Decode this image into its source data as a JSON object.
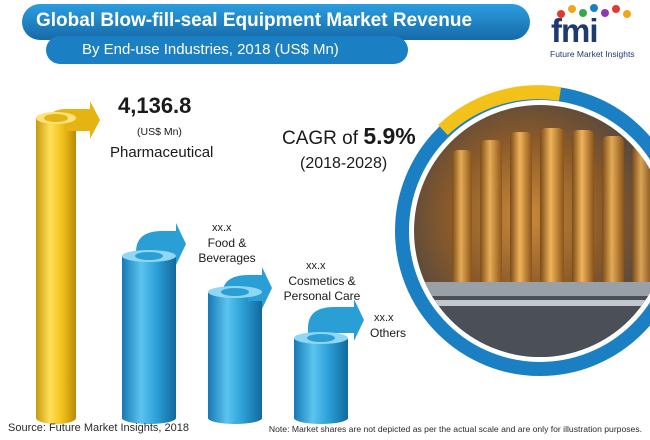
{
  "header": {
    "title": "Global Blow-fill-seal Equipment Market Revenue",
    "subtitle": "By End-use Industries, 2018 (US$ Mn)"
  },
  "logo": {
    "wordmark": "fmi",
    "tagline": "Future Market Insights"
  },
  "cagr": {
    "label": "CAGR of",
    "value": "5.9%",
    "period": "(2018-2028)"
  },
  "footer": {
    "source": "Source: Future Market Insights, 2018",
    "note": "Note: Market shares are not depicted as per the actual scale and are only for illustration purposes."
  },
  "colors": {
    "banner": "#1b7fc4",
    "highlight_cylinder": "#f2c21b",
    "cylinder": "#2a9fd6",
    "ring": "#1b7fc4",
    "ring_accent": "#f2c21b"
  },
  "chart_data": {
    "type": "bar",
    "title": "Global Blow-fill-seal Equipment Market Revenue",
    "subtitle": "By End-use Industries, 2018 (US$ Mn)",
    "categories": [
      "Pharmaceutical",
      "Food & Beverages",
      "Cosmetics & Personal Care",
      "Others"
    ],
    "value_labels": [
      "4,136.8",
      "xx.x",
      "xx.x",
      "xx.x"
    ],
    "unit": "(US$ Mn)",
    "values": [
      4136.8,
      null,
      null,
      null
    ],
    "highlight": "Pharmaceutical"
  }
}
